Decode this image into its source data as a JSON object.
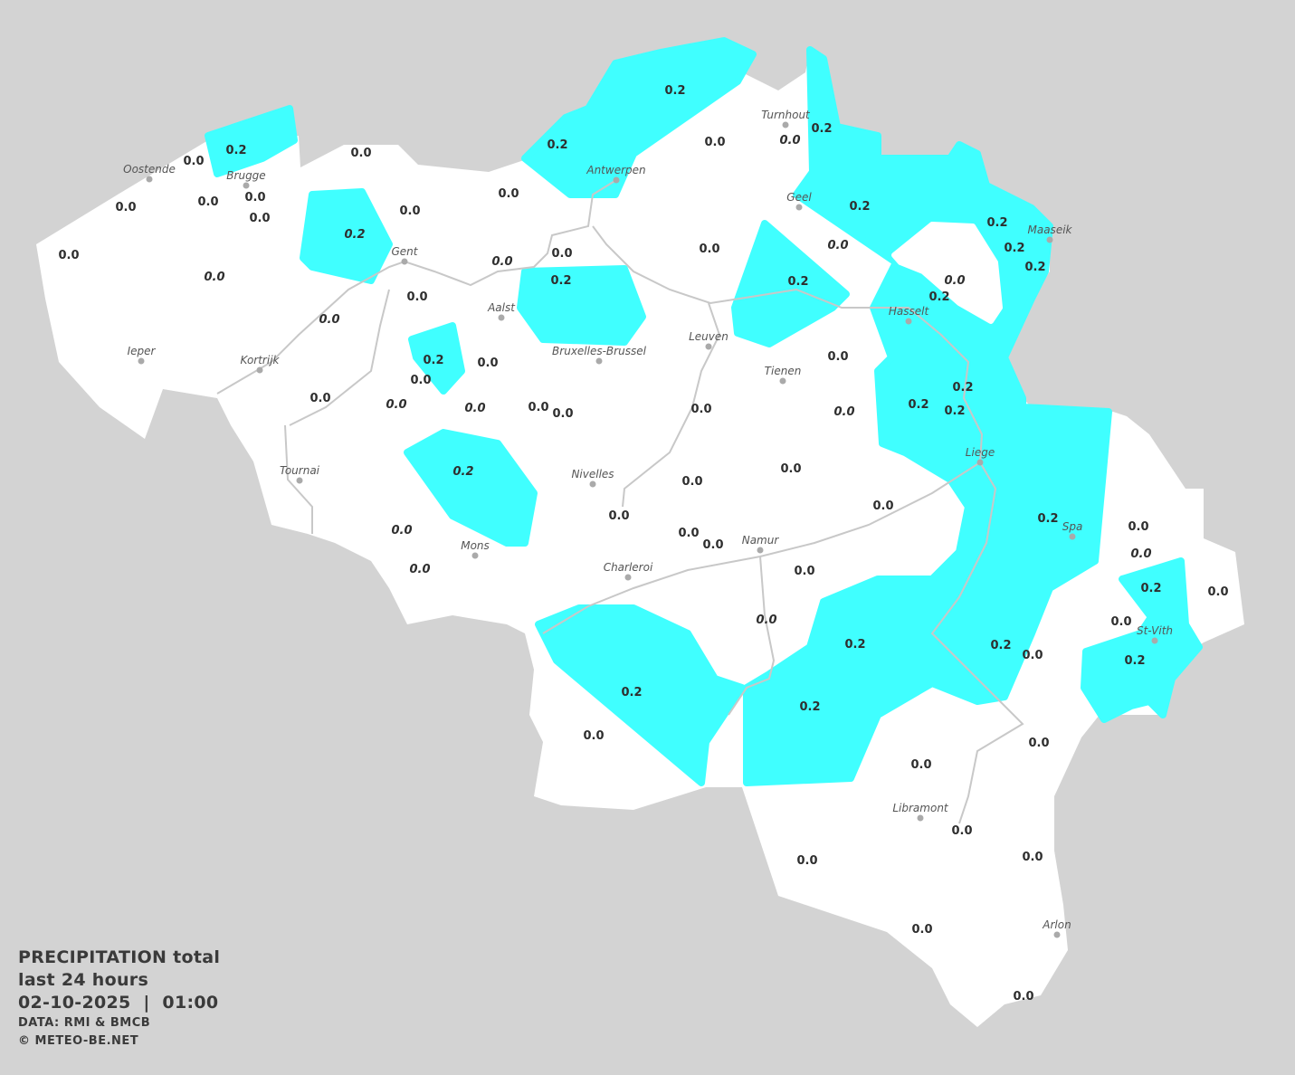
{
  "legend": {
    "title": "PRECIPITATION total",
    "period": "last 24 hours",
    "datetime": "02-10-2025  |  01:00",
    "source": "DATA: RMI & BMCB",
    "copyright": "© METEO-BE.NET"
  },
  "colors": {
    "background": "#d3d3d3",
    "land": "#ffffff",
    "precip_0_2": "#40ffff",
    "rivers": "#c8c8c8",
    "text": "#2e2e2e"
  },
  "cities": [
    "Oostende",
    "Brugge",
    "Gent",
    "Antwerpen",
    "Turnhout",
    "Geel",
    "Maaseik",
    "Hasselt",
    "Aalst",
    "Bruxelles-Brussel",
    "Leuven",
    "Tienen",
    "Ieper",
    "Kortrijk",
    "Tournai",
    "Nivelles",
    "Liege",
    "Spa",
    "Mons",
    "Charleroi",
    "Namur",
    "St-Vith",
    "Libramont",
    "Arlon"
  ],
  "stations": [
    {
      "v": "0.2"
    },
    {
      "v": "0.0"
    },
    {
      "v": "0.0"
    },
    {
      "v": "0.0"
    },
    {
      "v": "0.0"
    },
    {
      "v": "0.0"
    },
    {
      "v": "0.0"
    },
    {
      "v": "0.2",
      "italic": true
    },
    {
      "v": "0.0"
    },
    {
      "v": "0.0"
    },
    {
      "v": "0.2"
    },
    {
      "v": "0.2"
    },
    {
      "v": "0.0"
    },
    {
      "v": "0.0",
      "italic": true
    },
    {
      "v": "0.2"
    },
    {
      "v": "0.2"
    },
    {
      "v": "0.2"
    },
    {
      "v": "0.2"
    },
    {
      "v": "0.2"
    },
    {
      "v": "0.0"
    },
    {
      "v": "0.0",
      "italic": true
    },
    {
      "v": "0.0",
      "italic": true
    },
    {
      "v": "0.0"
    },
    {
      "v": "0.2"
    },
    {
      "v": "0.0"
    },
    {
      "v": "0.0",
      "italic": true
    },
    {
      "v": "0.0",
      "italic": true
    },
    {
      "v": "0.2"
    },
    {
      "v": "0.2"
    },
    {
      "v": "0.0"
    },
    {
      "v": "0.0",
      "italic": true
    },
    {
      "v": "0.2"
    },
    {
      "v": "0.0"
    },
    {
      "v": "0.0"
    },
    {
      "v": "0.0"
    },
    {
      "v": "0.0"
    },
    {
      "v": "0.0",
      "italic": true
    },
    {
      "v": "0.0",
      "italic": true
    },
    {
      "v": "0.0"
    },
    {
      "v": "0.0"
    },
    {
      "v": "0.0"
    },
    {
      "v": "0.0",
      "italic": true
    },
    {
      "v": "0.2"
    },
    {
      "v": "0.2"
    },
    {
      "v": "0.2"
    },
    {
      "v": "0.2",
      "italic": true
    },
    {
      "v": "0.0"
    },
    {
      "v": "0.0"
    },
    {
      "v": "0.0"
    },
    {
      "v": "0.0"
    },
    {
      "v": "0.0",
      "italic": true
    },
    {
      "v": "0.0"
    },
    {
      "v": "0.0"
    },
    {
      "v": "0.2"
    },
    {
      "v": "0.0"
    },
    {
      "v": "0.0",
      "italic": true
    },
    {
      "v": "0.0",
      "italic": true
    },
    {
      "v": "0.0"
    },
    {
      "v": "0.2"
    },
    {
      "v": "0.0"
    },
    {
      "v": "0.0",
      "italic": true
    },
    {
      "v": "0.0"
    },
    {
      "v": "0.2"
    },
    {
      "v": "0.2"
    },
    {
      "v": "0.0"
    },
    {
      "v": "0.2"
    },
    {
      "v": "0.2"
    },
    {
      "v": "0.2"
    },
    {
      "v": "0.0"
    },
    {
      "v": "0.0"
    },
    {
      "v": "0.0"
    },
    {
      "v": "0.0"
    },
    {
      "v": "0.0"
    },
    {
      "v": "0.0"
    },
    {
      "v": "0.0"
    },
    {
      "v": "0.0"
    }
  ]
}
